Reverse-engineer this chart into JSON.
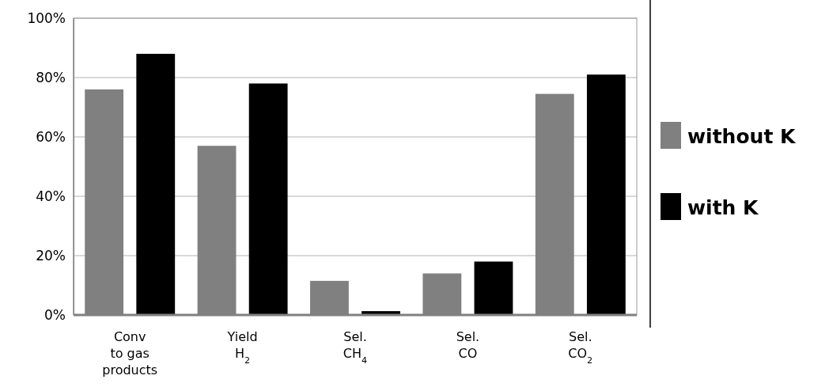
{
  "chart_data": {
    "type": "bar",
    "categories": [
      "Conv\nto gas\nproducts",
      "Yield\nH$_{2}$",
      "Sel.\nCH$_{4}$",
      "Sel.\nCO",
      "Sel.\nCO$_{2}$"
    ],
    "series": [
      {
        "name": "without K",
        "color": "#808080",
        "values": [
          76,
          57,
          11.5,
          14,
          74.5
        ]
      },
      {
        "name": "with K",
        "color": "#000000",
        "values": [
          88,
          78,
          1.3,
          18,
          81
        ]
      }
    ],
    "ylim": [
      0,
      100
    ],
    "yticks": [
      {
        "value": 0,
        "label": "0%"
      },
      {
        "value": 20,
        "label": "20%"
      },
      {
        "value": 40,
        "label": "40%"
      },
      {
        "value": 60,
        "label": "60%"
      },
      {
        "value": 80,
        "label": "80%"
      },
      {
        "value": 100,
        "label": "100%"
      }
    ],
    "grid": "y",
    "legend": "right"
  }
}
